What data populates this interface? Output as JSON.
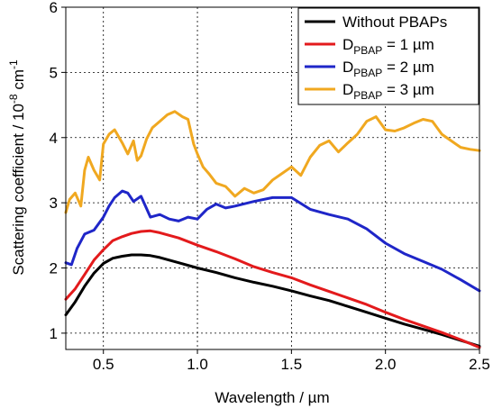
{
  "chart_data": {
    "type": "line",
    "xlabel": "Wavelength / µm",
    "ylabel": "Scattering coefficient / 10",
    "ylabel_exp1": "-8",
    "ylabel_unit": " cm",
    "ylabel_exp2": "-1",
    "xlim": [
      0.3,
      2.5
    ],
    "ylim": [
      0.75,
      6
    ],
    "x_ticks": [
      0.5,
      1.0,
      1.5,
      2.0,
      2.5
    ],
    "x_tick_labels": [
      "0.5",
      "1.0",
      "1.5",
      "2.0",
      "2.5"
    ],
    "y_ticks": [
      1,
      2,
      3,
      4,
      5,
      6
    ],
    "y_tick_labels": [
      "1",
      "2",
      "3",
      "4",
      "5",
      "6"
    ],
    "grid": true,
    "legend_position": "top-right",
    "legend": [
      {
        "main": "Without PBAPs",
        "sub": "",
        "suffix": ""
      },
      {
        "main": "D",
        "sub": "PBAP",
        "suffix": " = 1 µm"
      },
      {
        "main": "D",
        "sub": "PBAP",
        "suffix": " = 2 µm"
      },
      {
        "main": "D",
        "sub": "PBAP",
        "suffix": " = 3 µm"
      }
    ],
    "series": [
      {
        "color": "#000000",
        "x": [
          0.3,
          0.35,
          0.4,
          0.45,
          0.5,
          0.55,
          0.6,
          0.65,
          0.7,
          0.75,
          0.8,
          0.9,
          1.0,
          1.1,
          1.2,
          1.3,
          1.4,
          1.5,
          1.6,
          1.7,
          1.8,
          1.9,
          2.0,
          2.1,
          2.2,
          2.3,
          2.4,
          2.5
        ],
        "y": [
          1.28,
          1.48,
          1.72,
          1.92,
          2.07,
          2.15,
          2.18,
          2.2,
          2.2,
          2.19,
          2.16,
          2.08,
          2.0,
          1.93,
          1.85,
          1.78,
          1.72,
          1.65,
          1.57,
          1.5,
          1.41,
          1.32,
          1.23,
          1.14,
          1.06,
          0.98,
          0.89,
          0.8
        ]
      },
      {
        "color": "#e31a1c",
        "x": [
          0.3,
          0.35,
          0.4,
          0.45,
          0.5,
          0.55,
          0.6,
          0.65,
          0.7,
          0.75,
          0.8,
          0.9,
          1.0,
          1.1,
          1.2,
          1.3,
          1.4,
          1.5,
          1.6,
          1.7,
          1.8,
          1.9,
          2.0,
          2.1,
          2.2,
          2.3,
          2.4,
          2.5
        ],
        "y": [
          1.52,
          1.68,
          1.9,
          2.12,
          2.28,
          2.42,
          2.48,
          2.53,
          2.56,
          2.57,
          2.54,
          2.46,
          2.35,
          2.25,
          2.14,
          2.02,
          1.93,
          1.85,
          1.74,
          1.64,
          1.54,
          1.44,
          1.32,
          1.21,
          1.11,
          1.01,
          0.9,
          0.78
        ]
      },
      {
        "color": "#1f26c8",
        "x": [
          0.3,
          0.33,
          0.36,
          0.4,
          0.45,
          0.5,
          0.53,
          0.56,
          0.6,
          0.63,
          0.66,
          0.7,
          0.75,
          0.8,
          0.85,
          0.9,
          0.95,
          1.0,
          1.05,
          1.1,
          1.15,
          1.2,
          1.3,
          1.4,
          1.5,
          1.6,
          1.7,
          1.8,
          1.9,
          2.0,
          2.1,
          2.2,
          2.3,
          2.4,
          2.5
        ],
        "y": [
          2.08,
          2.05,
          2.3,
          2.52,
          2.58,
          2.78,
          2.95,
          3.08,
          3.18,
          3.15,
          3.02,
          3.1,
          2.78,
          2.82,
          2.75,
          2.72,
          2.78,
          2.75,
          2.9,
          2.98,
          2.92,
          2.95,
          3.02,
          3.08,
          3.08,
          2.9,
          2.82,
          2.75,
          2.6,
          2.38,
          2.22,
          2.1,
          1.98,
          1.82,
          1.65
        ]
      },
      {
        "color": "#f0a820",
        "x": [
          0.3,
          0.32,
          0.35,
          0.38,
          0.4,
          0.42,
          0.45,
          0.48,
          0.5,
          0.53,
          0.56,
          0.6,
          0.63,
          0.66,
          0.68,
          0.7,
          0.73,
          0.76,
          0.8,
          0.84,
          0.88,
          0.92,
          0.95,
          0.98,
          1.0,
          1.03,
          1.06,
          1.1,
          1.15,
          1.2,
          1.25,
          1.3,
          1.35,
          1.4,
          1.45,
          1.5,
          1.55,
          1.6,
          1.65,
          1.7,
          1.75,
          1.8,
          1.85,
          1.9,
          1.95,
          2.0,
          2.05,
          2.1,
          2.15,
          2.2,
          2.25,
          2.3,
          2.35,
          2.4,
          2.45,
          2.5
        ],
        "y": [
          2.85,
          3.05,
          3.15,
          2.95,
          3.5,
          3.7,
          3.5,
          3.35,
          3.9,
          4.05,
          4.12,
          3.92,
          3.75,
          3.95,
          3.65,
          3.72,
          3.98,
          4.15,
          4.25,
          4.35,
          4.4,
          4.32,
          4.28,
          3.9,
          3.75,
          3.55,
          3.45,
          3.3,
          3.25,
          3.1,
          3.22,
          3.15,
          3.2,
          3.35,
          3.45,
          3.55,
          3.42,
          3.7,
          3.88,
          3.95,
          3.78,
          3.92,
          4.05,
          4.25,
          4.32,
          4.12,
          4.1,
          4.15,
          4.22,
          4.28,
          4.25,
          4.05,
          3.95,
          3.85,
          3.82,
          3.8
        ]
      }
    ]
  }
}
